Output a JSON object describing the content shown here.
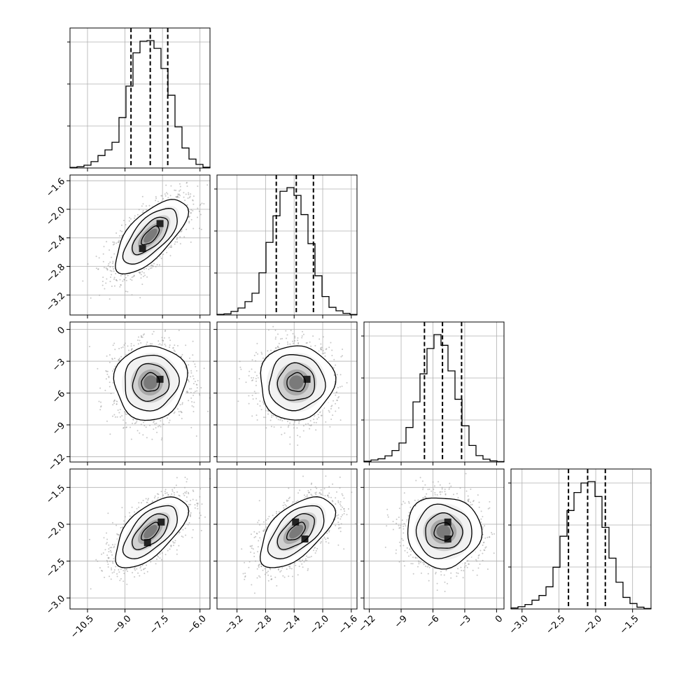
{
  "chart_data": {
    "type": "corner",
    "title": "",
    "parameters": [
      {
        "index": 0,
        "range": [
          -11.2,
          -5.6
        ],
        "ticks": [
          -10.5,
          -9.0,
          -7.5,
          -6.0
        ],
        "tick_labels": [
          "−10.5",
          "−9.0",
          "−7.5",
          "−6.0"
        ],
        "quantiles": {
          "q16": -8.76,
          "q50": -7.99,
          "q84": -7.29
        }
      },
      {
        "index": 1,
        "range": [
          -3.48,
          -1.52
        ],
        "ticks": [
          -3.2,
          -2.8,
          -2.4,
          -2.0,
          -1.6
        ],
        "tick_labels": [
          "−3.2",
          "−2.8",
          "−2.4",
          "−2.0",
          "−1.6"
        ],
        "quantiles": {
          "q16": -2.65,
          "q50": -2.37,
          "q84": -2.13
        }
      },
      {
        "index": 2,
        "range": [
          -12.5,
          0.7
        ],
        "ticks": [
          -12,
          -9,
          -6,
          -3,
          0
        ],
        "tick_labels": [
          "−12",
          "−9",
          "−6",
          "−3",
          "0"
        ],
        "quantiles": {
          "q16": -6.8,
          "q50": -5.1,
          "q84": -3.3
        }
      },
      {
        "index": 3,
        "range": [
          -3.15,
          -1.25
        ],
        "ticks": [
          -3.0,
          -2.5,
          -2.0,
          -1.5
        ],
        "tick_labels": [
          "−3.0",
          "−2.5",
          "−2.0",
          "−1.5"
        ],
        "quantiles": {
          "q16": -2.37,
          "q50": -2.11,
          "q84": -1.87
        }
      }
    ],
    "histograms": [
      {
        "param": 0,
        "bins": 20,
        "range": [
          -11.2,
          -5.6
        ],
        "peak_center": -7.95,
        "values": [
          0.005,
          0.01,
          0.022,
          0.05,
          0.098,
          0.142,
          0.202,
          0.396,
          0.643,
          0.904,
          0.995,
          1.0,
          0.939,
          0.781,
          0.571,
          0.323,
          0.157,
          0.07,
          0.028,
          0.006
        ]
      },
      {
        "param": 1,
        "bins": 20,
        "range": [
          -3.48,
          -1.52
        ],
        "peak_center": -2.35,
        "values": [
          0.005,
          0.009,
          0.028,
          0.055,
          0.105,
          0.171,
          0.331,
          0.57,
          0.778,
          0.971,
          1.0,
          0.939,
          0.788,
          0.56,
          0.308,
          0.145,
          0.06,
          0.033,
          0.013,
          0.004
        ]
      },
      {
        "param": 2,
        "bins": 20,
        "range": [
          -12.5,
          0.7
        ],
        "peak_center": -5.0,
        "values": [
          0.006,
          0.016,
          0.025,
          0.048,
          0.09,
          0.149,
          0.271,
          0.472,
          0.692,
          0.891,
          1.0,
          0.916,
          0.715,
          0.492,
          0.284,
          0.13,
          0.05,
          0.022,
          0.009,
          0.003
        ]
      },
      {
        "param": 3,
        "bins": 20,
        "range": [
          -3.15,
          -1.25
        ],
        "peak_center": -2.05,
        "values": [
          0.008,
          0.018,
          0.035,
          0.069,
          0.106,
          0.174,
          0.328,
          0.571,
          0.773,
          0.914,
          0.989,
          1.0,
          0.883,
          0.641,
          0.399,
          0.21,
          0.091,
          0.043,
          0.014,
          0.004
        ]
      }
    ],
    "pairs": [
      {
        "x_param": 0,
        "y_param": 1,
        "mean": [
          -7.98,
          -2.37
        ],
        "sd": [
          0.72,
          0.26
        ],
        "corr": 0.68,
        "peak_cells": [
          [
            -7.6,
            -2.2
          ],
          [
            -8.3,
            -2.55
          ]
        ]
      },
      {
        "x_param": 0,
        "y_param": 2,
        "mean": [
          -7.98,
          -5.0
        ],
        "sd": [
          0.72,
          1.75
        ],
        "corr": 0.05,
        "peak_cells": [
          [
            -7.6,
            -4.7
          ]
        ]
      },
      {
        "x_param": 1,
        "y_param": 2,
        "mean": [
          -2.37,
          -5.0
        ],
        "sd": [
          0.26,
          1.75
        ],
        "corr": 0.02,
        "peak_cells": [
          [
            -2.22,
            -4.7
          ]
        ]
      },
      {
        "x_param": 0,
        "y_param": 3,
        "mean": [
          -7.98,
          -2.1
        ],
        "sd": [
          0.72,
          0.24
        ],
        "corr": 0.62,
        "peak_cells": [
          [
            -7.55,
            -1.97
          ],
          [
            -8.1,
            -2.25
          ]
        ]
      },
      {
        "x_param": 1,
        "y_param": 3,
        "mean": [
          -2.37,
          -2.1
        ],
        "sd": [
          0.26,
          0.24
        ],
        "corr": 0.58,
        "peak_cells": [
          [
            -2.38,
            -1.97
          ],
          [
            -2.25,
            -2.2
          ]
        ]
      },
      {
        "x_param": 2,
        "y_param": 3,
        "mean": [
          -5.0,
          -2.1
        ],
        "sd": [
          1.75,
          0.24
        ],
        "corr": -0.02,
        "peak_cells": [
          [
            -4.6,
            -1.97
          ],
          [
            -4.6,
            -2.2
          ]
        ]
      }
    ],
    "contour_levels_sigma": [
      0.5,
      1.0,
      1.5,
      2.0
    ],
    "samples_per_panel": 1800,
    "colors": {
      "line": "#000000",
      "grid": "#b0b0b0",
      "scatter": "#9a9a9a",
      "frame": "#000000"
    },
    "grid": true,
    "legend": "none"
  }
}
